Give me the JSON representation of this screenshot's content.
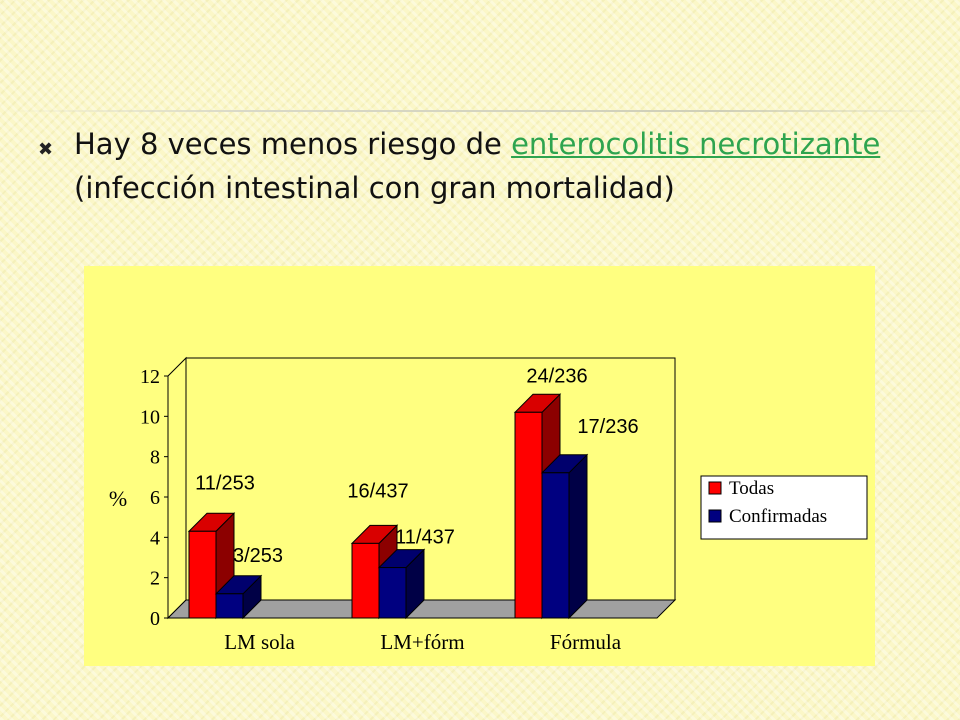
{
  "slide": {
    "bullet_icon": "x-icon",
    "text_before": "Hay 8 veces menos riesgo de ",
    "link_text": "enterocolitis necrotizante",
    "text_after": " (infección intestinal con gran mortalidad)",
    "link_color": "#2ea44f"
  },
  "chart_data": {
    "type": "bar",
    "categories": [
      "LM sola",
      "LM+fórm",
      "Fórmula"
    ],
    "series": [
      {
        "name": "Todas",
        "color": "#ff0000",
        "values": [
          4.3,
          3.7,
          10.2
        ],
        "labels": [
          "11/253",
          "16/437",
          "24/236"
        ]
      },
      {
        "name": "Confirmadas",
        "color": "#000080",
        "values": [
          1.2,
          2.5,
          7.2
        ],
        "labels": [
          "3/253",
          "11/437",
          "17/236"
        ]
      }
    ],
    "ylabel": "%",
    "ylim": [
      0,
      12
    ],
    "yticks": [
      0,
      2,
      4,
      6,
      8,
      10,
      12
    ],
    "legend_position": "right",
    "background_color": "#ffff80"
  }
}
